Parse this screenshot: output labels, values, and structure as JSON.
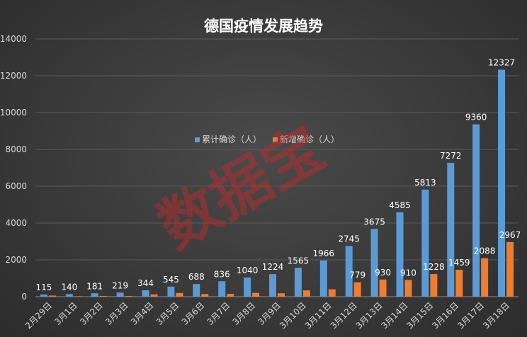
{
  "chart_data": {
    "type": "bar",
    "title": "德国疫情发展趋势",
    "xlabel": "",
    "ylabel": "",
    "ylim": [
      0,
      14000
    ],
    "yticks": [
      0,
      2000,
      4000,
      6000,
      8000,
      10000,
      12000,
      14000
    ],
    "grid": true,
    "legend_position": "center",
    "categories": [
      "2月29日",
      "3月1日",
      "3月2日",
      "3月3日",
      "3月4日",
      "3月5日",
      "3月6日",
      "3月7日",
      "3月8日",
      "3月9日",
      "3月10日",
      "3月11日",
      "3月12日",
      "3月13日",
      "3月14日",
      "3月15日",
      "3月16日",
      "3月17日",
      "3月18日"
    ],
    "series": [
      {
        "name": "累计确诊（人）",
        "color": "#5b9bd5",
        "values": [
          115,
          140,
          181,
          219,
          344,
          545,
          688,
          836,
          1040,
          1224,
          1565,
          1966,
          2745,
          3675,
          4585,
          5813,
          7272,
          9360,
          12327
        ],
        "labeled": [
          true,
          true,
          true,
          true,
          true,
          true,
          true,
          true,
          true,
          true,
          true,
          true,
          true,
          true,
          true,
          true,
          true,
          true,
          true
        ]
      },
      {
        "name": "新增确诊（人）",
        "color": "#ed7d31",
        "values": [
          60,
          25,
          41,
          38,
          125,
          201,
          143,
          148,
          204,
          184,
          341,
          401,
          779,
          930,
          910,
          1228,
          1459,
          2088,
          2967
        ],
        "labeled": [
          false,
          false,
          false,
          false,
          false,
          false,
          false,
          false,
          false,
          false,
          false,
          false,
          true,
          true,
          true,
          true,
          true,
          true,
          true
        ]
      }
    ]
  },
  "watermark": {
    "text": "数据宝"
  }
}
